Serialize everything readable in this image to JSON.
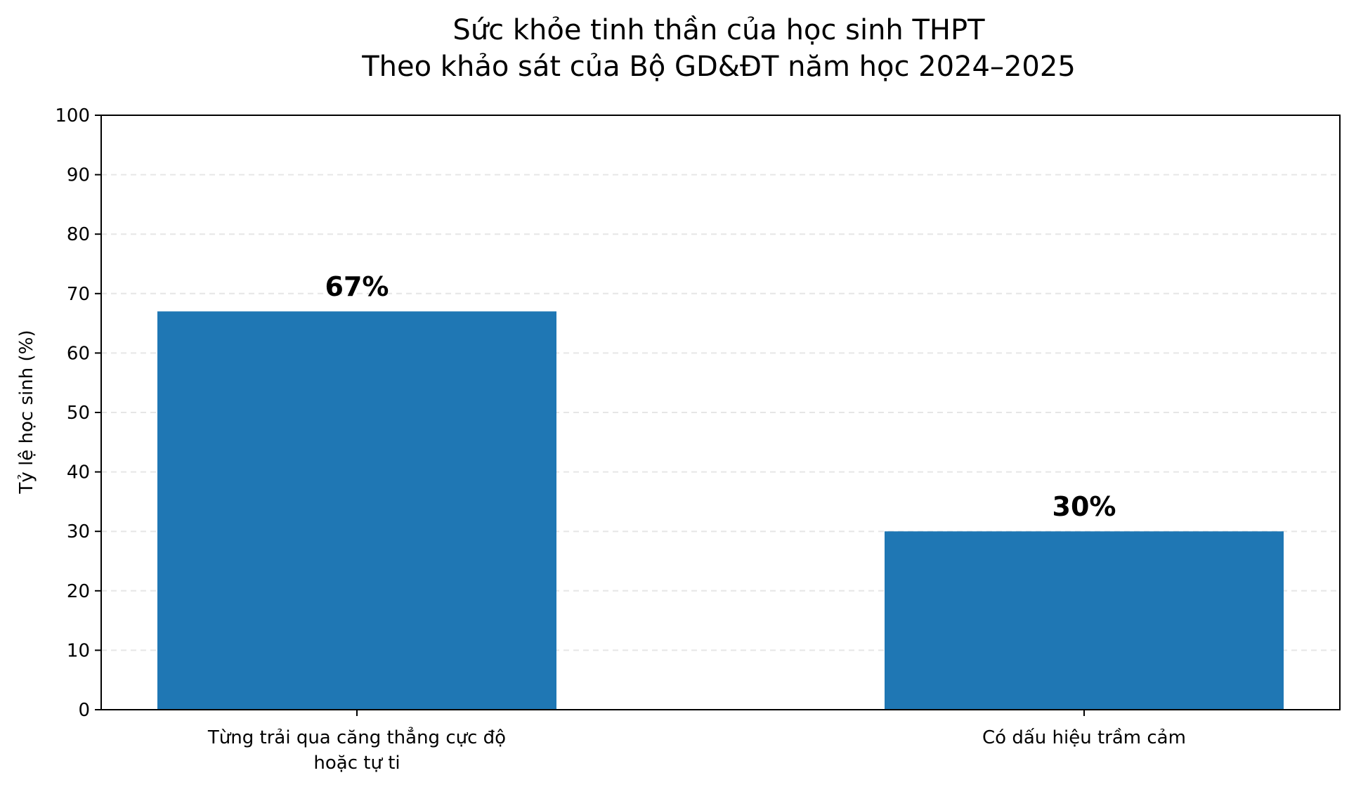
{
  "chart_data": {
    "type": "bar",
    "title": "Sức khỏe tinh thần của học sinh THPT",
    "subtitle": "Theo khảo sát của Bộ GD&ĐT năm học 2024–2025",
    "xlabel": "",
    "ylabel": "Tỷ lệ học sinh (%)",
    "ylim": [
      0,
      100
    ],
    "yticks": [
      0,
      10,
      20,
      30,
      40,
      50,
      60,
      70,
      80,
      90,
      100
    ],
    "categories": [
      [
        "Từng trải qua căng thẳng cực độ",
        "hoặc tự ti"
      ],
      [
        "Có dấu hiệu trầm cảm"
      ]
    ],
    "values": [
      67,
      30
    ],
    "data_labels": [
      "67%",
      "30%"
    ],
    "grid": "horizontal dashed",
    "legend": "none",
    "colors": {
      "bar": "#1f77b4",
      "grid": "#e6e6e6",
      "axis": "#000000"
    }
  }
}
